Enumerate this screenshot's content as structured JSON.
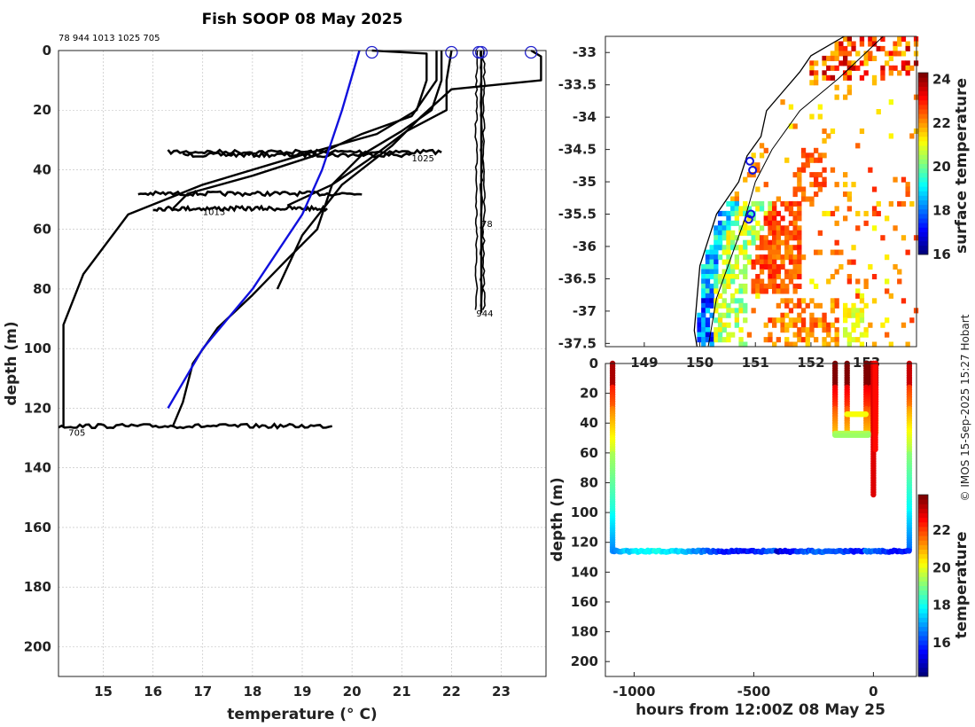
{
  "title": "Fish SOOP 08 May 2025",
  "copyright": "© IMOS 15-Sep-2025 15:27 Hobart",
  "chart_data": [
    {
      "type": "line",
      "name": "profiles",
      "xlabel": "temperature (° C)",
      "ylabel": "depth (m)",
      "xlim": [
        14.1,
        23.9
      ],
      "ylim": [
        210,
        0
      ],
      "x_ticks": [
        15,
        16,
        17,
        18,
        19,
        20,
        21,
        22,
        23
      ],
      "y_ticks": [
        0,
        20,
        40,
        60,
        80,
        100,
        120,
        140,
        160,
        180,
        200
      ],
      "grid": true,
      "top_label": "78 944 1013 1025 705",
      "profile_labels": [
        {
          "text": "1025",
          "x": 21.2,
          "y": 36
        },
        {
          "text": "1013",
          "x": 17.0,
          "y": 54
        },
        {
          "text": "78",
          "x": 22.6,
          "y": 58
        },
        {
          "text": "944",
          "x": 22.5,
          "y": 88
        },
        {
          "text": "705",
          "x": 14.3,
          "y": 128
        }
      ],
      "surface_markers": [
        {
          "x": 20.4,
          "y": 0
        },
        {
          "x": 22.0,
          "y": 0
        },
        {
          "x": 22.55,
          "y": 0
        },
        {
          "x": 22.6,
          "y": 0
        },
        {
          "x": 23.6,
          "y": 0
        }
      ],
      "climatology": {
        "x": [
          20.15,
          19.8,
          19.4,
          19.0,
          18.0,
          17.0,
          16.3
        ],
        "y": [
          0,
          20,
          40,
          55,
          80,
          100,
          120
        ]
      },
      "profiles": [
        {
          "x": [
            20.4,
            21.5,
            21.5,
            21.3,
            20.5,
            19.0,
            17.0,
            15.5,
            14.6,
            14.2,
            14.2,
            14.2
          ],
          "y": [
            0,
            1,
            10,
            20,
            28,
            35,
            45,
            55,
            75,
            92,
            100,
            126
          ]
        },
        {
          "x": [
            21.8,
            21.8,
            21.6,
            21.0,
            20.2,
            19.6,
            19.3,
            18.7,
            18.0,
            17.3,
            16.8,
            16.6,
            16.4
          ],
          "y": [
            0,
            10,
            20,
            27,
            35,
            45,
            60,
            70,
            82,
            93,
            105,
            118,
            126
          ]
        },
        {
          "x": [
            23.6,
            23.8,
            23.8,
            22.0,
            21.4,
            20.8,
            19.8,
            19.0,
            18.5
          ],
          "y": [
            0,
            2,
            10,
            13,
            22,
            32,
            45,
            62,
            80
          ]
        },
        {
          "x": [
            22.0,
            21.9,
            21.9,
            21.1,
            20.3,
            19.6,
            18.7
          ],
          "y": [
            0,
            10,
            20,
            27,
            37,
            45,
            52
          ]
        },
        {
          "x": [
            21.7,
            21.7,
            21.2,
            20.2,
            19.3,
            18.0,
            16.7,
            16.4
          ],
          "y": [
            0,
            10,
            22,
            28,
            35,
            42,
            48,
            53
          ]
        },
        {
          "x": [
            22.6,
            22.6,
            22.6,
            22.6
          ],
          "y": [
            0,
            20,
            58,
            88
          ]
        }
      ],
      "noise_bands": [
        {
          "y": 34,
          "x0": 16.3,
          "x1": 21.8
        },
        {
          "y": 35,
          "x0": 16.6,
          "x1": 21.2
        },
        {
          "y": 48,
          "x0": 15.7,
          "x1": 20.2
        },
        {
          "y": 53,
          "x0": 16.0,
          "x1": 19.5
        },
        {
          "y": 126,
          "x0": 14.1,
          "x1": 19.6
        }
      ]
    },
    {
      "type": "heatmap",
      "name": "map",
      "ylabel": "",
      "xlim": [
        148.3,
        153.9
      ],
      "ylim": [
        -37.55,
        -32.75
      ],
      "x_ticks": [
        149,
        150,
        151,
        152,
        153
      ],
      "x_ticklabels": [
        "149",
        "150",
        "151",
        "152",
        "153"
      ],
      "y_ticks": [
        -33,
        -33.5,
        -34,
        -34.5,
        -35,
        -35.5,
        -36,
        -36.5,
        -37,
        -37.5
      ],
      "y_ticklabels": [
        "-33",
        "-33.5",
        "-34",
        "-34.5",
        "-35",
        "-35.5",
        "-36",
        "-36.5",
        "-37",
        "-37.5"
      ],
      "colorbar": {
        "label": "surface temperature",
        "ticks": [
          16,
          18,
          20,
          22,
          24
        ],
        "range": [
          16,
          24.3
        ]
      },
      "stations": [
        [
          150.9,
          -34.68
        ],
        [
          150.95,
          -34.82
        ],
        [
          150.92,
          -35.5
        ],
        [
          150.88,
          -35.58
        ]
      ],
      "coast": [
        [
          152.6,
          -32.75
        ],
        [
          152.0,
          -33.05
        ],
        [
          151.8,
          -33.3
        ],
        [
          151.5,
          -33.6
        ],
        [
          151.2,
          -33.9
        ],
        [
          151.1,
          -34.3
        ],
        [
          150.85,
          -34.6
        ],
        [
          150.7,
          -35.0
        ],
        [
          150.3,
          -35.5
        ],
        [
          150.15,
          -35.9
        ],
        [
          150.0,
          -36.3
        ],
        [
          149.95,
          -36.8
        ],
        [
          149.9,
          -37.3
        ],
        [
          149.95,
          -37.55
        ]
      ],
      "isobath": [
        [
          153.3,
          -32.75
        ],
        [
          152.5,
          -33.4
        ],
        [
          151.8,
          -33.9
        ],
        [
          151.3,
          -34.5
        ],
        [
          151.0,
          -35.0
        ],
        [
          150.8,
          -35.6
        ],
        [
          150.55,
          -36.2
        ],
        [
          150.3,
          -36.8
        ],
        [
          150.15,
          -37.55
        ]
      ]
    },
    {
      "type": "scatter",
      "name": "depth-time",
      "xlabel": "hours from 12:00Z 08 May 25",
      "ylabel": "depth (m)",
      "xlim": [
        -1120,
        180
      ],
      "ylim": [
        210,
        0
      ],
      "x_ticks": [
        -1000,
        -500,
        0
      ],
      "y_ticks": [
        0,
        20,
        40,
        60,
        80,
        100,
        120,
        140,
        160,
        180,
        200
      ],
      "colorbar": {
        "label": "temperature",
        "ticks": [
          16,
          18,
          20,
          22
        ],
        "range": [
          14.2,
          23.9
        ]
      }
    }
  ]
}
